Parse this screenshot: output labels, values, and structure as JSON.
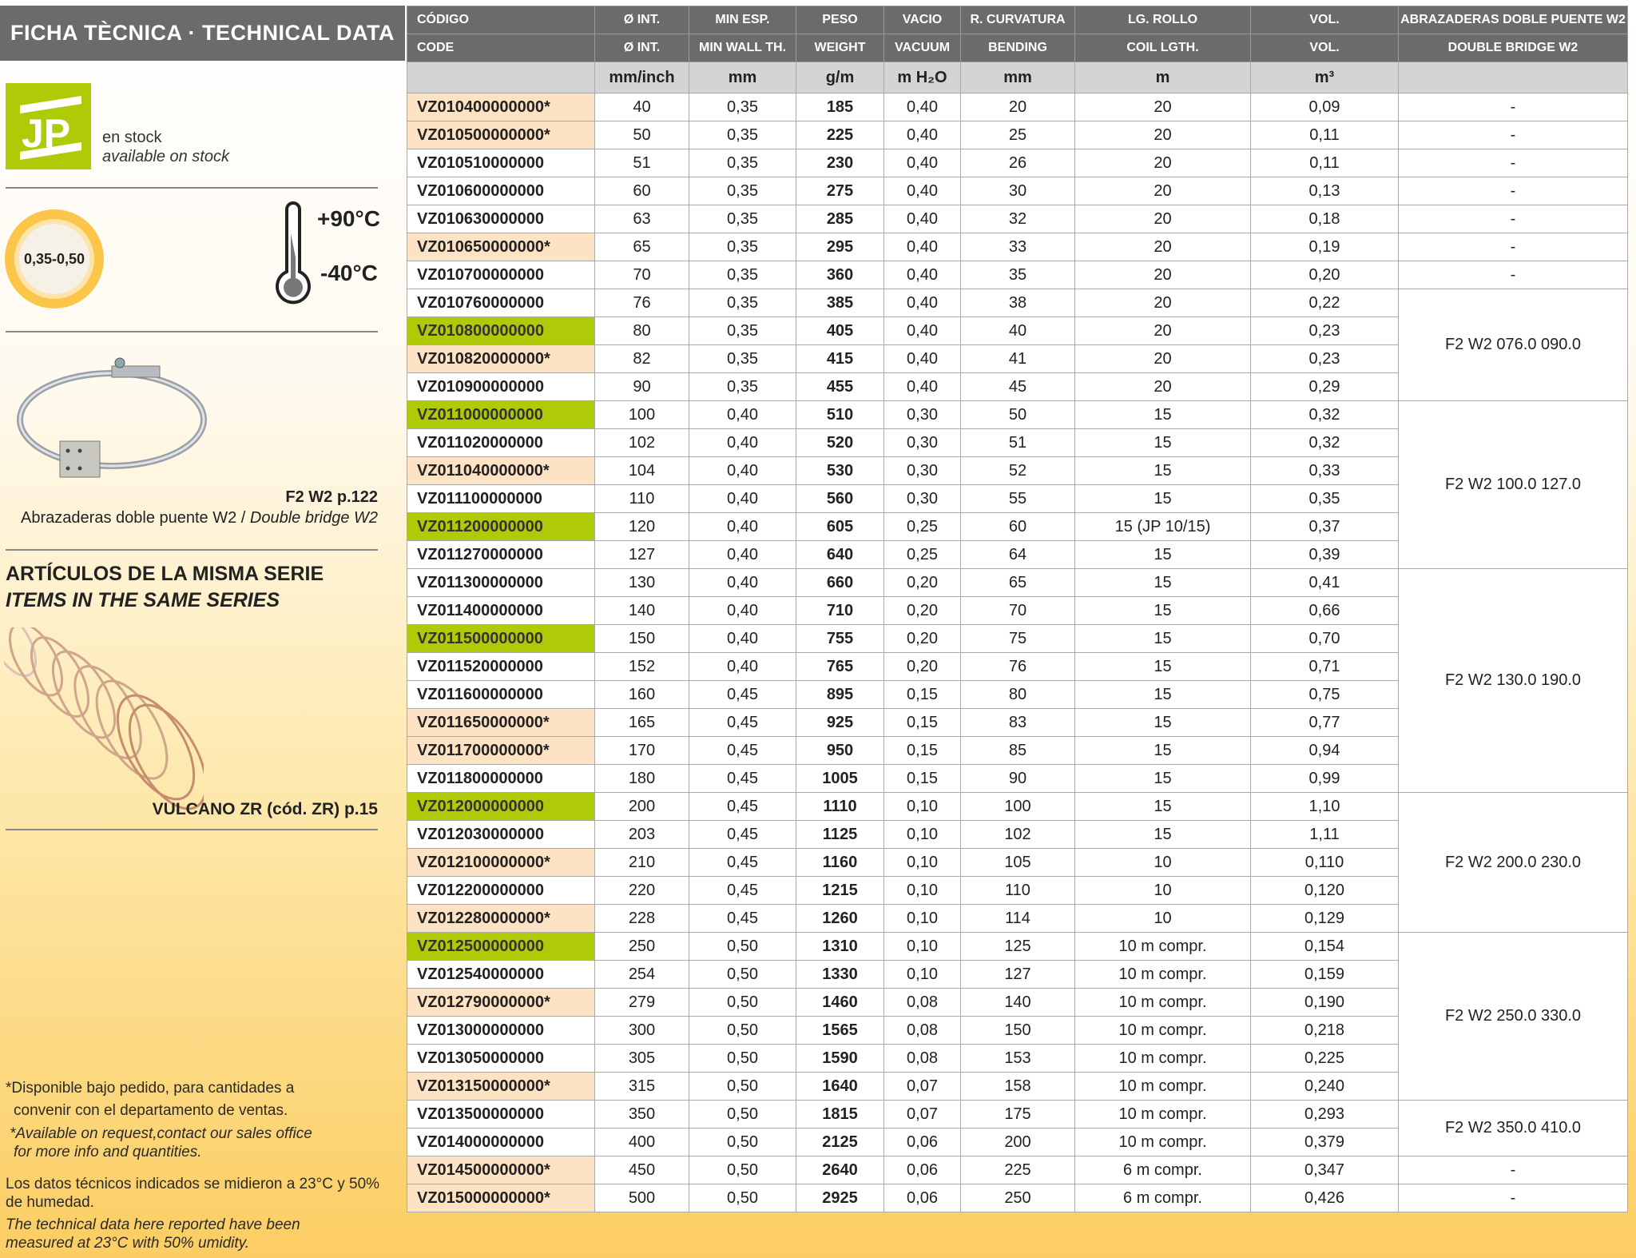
{
  "sidebar": {
    "title": "FICHA TÈCNICA · TECHNICAL DATA",
    "logo_text": "JP",
    "stock_es": "en stock",
    "stock_en": "available on stock",
    "thickness_badge": "0,35-0,50",
    "temp_max": "+90°C",
    "temp_min": "-40°C",
    "clamp_ref": "F2 W2 p.122",
    "clamp_caption_es": "Abrazaderas doble puente W2 / ",
    "clamp_caption_en": "Double bridge W2",
    "series_title": "ARTÍCULOS DE LA MISMA SERIE",
    "series_subtitle": "ITEMS IN THE SAME SERIES",
    "series_item": "VULCANO ZR (cód. ZR) p.15",
    "note_es_1": "*Disponible bajo pedido, para cantidades a",
    "note_es_2": "convenir con el departamento de ventas.",
    "note_en_1": "*Available on request,contact our sales office",
    "note_en_2": "for more info and quantities.",
    "conditions_es": "Los datos técnicos indicados se midieron a 23°C y 50% de humedad.",
    "conditions_en": "The technical data here reported have been measured at 23°C with 50% umidity."
  },
  "colors": {
    "header_bg": "#6b6b6b",
    "stock_green": "#afcb08",
    "on_request_peach": "#fde3c4",
    "units_bg": "#d4d4d4",
    "page_yellow": "#fccd62"
  },
  "table": {
    "headers_es": [
      "CÓDIGO",
      "Ø INT.",
      "MIN ESP.",
      "PESO",
      "VACIO",
      "R. CURVATURA",
      "LG. ROLLO",
      "VOL.",
      "ABRAZADERAS DOBLE PUENTE W2"
    ],
    "headers_en": [
      "CODE",
      "Ø INT.",
      "MIN WALL TH.",
      "WEIGHT",
      "VACUUM",
      "BENDING",
      "COIL LGTH.",
      "VOL.",
      "DOUBLE BRIDGE W2"
    ],
    "units": [
      "",
      "mm/inch",
      "mm",
      "g/m",
      "m H₂O",
      "mm",
      "m",
      "m³",
      ""
    ],
    "rows": [
      {
        "code": "VZ010400000000*",
        "status": "on-request",
        "d": "40",
        "wall": "0,35",
        "weight": "185",
        "vacuum": "0,40",
        "bend": "20",
        "coil": "20",
        "vol": "0,09"
      },
      {
        "code": "VZ010500000000*",
        "status": "on-request",
        "d": "50",
        "wall": "0,35",
        "weight": "225",
        "vacuum": "0,40",
        "bend": "25",
        "coil": "20",
        "vol": "0,11"
      },
      {
        "code": "VZ010510000000",
        "status": "",
        "d": "51",
        "wall": "0,35",
        "weight": "230",
        "vacuum": "0,40",
        "bend": "26",
        "coil": "20",
        "vol": "0,11"
      },
      {
        "code": "VZ010600000000",
        "status": "",
        "d": "60",
        "wall": "0,35",
        "weight": "275",
        "vacuum": "0,40",
        "bend": "30",
        "coil": "20",
        "vol": "0,13"
      },
      {
        "code": "VZ010630000000",
        "status": "",
        "d": "63",
        "wall": "0,35",
        "weight": "285",
        "vacuum": "0,40",
        "bend": "32",
        "coil": "20",
        "vol": "0,18"
      },
      {
        "code": "VZ010650000000*",
        "status": "on-request",
        "d": "65",
        "wall": "0,35",
        "weight": "295",
        "vacuum": "0,40",
        "bend": "33",
        "coil": "20",
        "vol": "0,19"
      },
      {
        "code": "VZ010700000000",
        "status": "",
        "d": "70",
        "wall": "0,35",
        "weight": "360",
        "vacuum": "0,40",
        "bend": "35",
        "coil": "20",
        "vol": "0,20"
      },
      {
        "code": "VZ010760000000",
        "status": "",
        "d": "76",
        "wall": "0,35",
        "weight": "385",
        "vacuum": "0,40",
        "bend": "38",
        "coil": "20",
        "vol": "0,22"
      },
      {
        "code": "VZ010800000000",
        "status": "in-stock",
        "d": "80",
        "wall": "0,35",
        "weight": "405",
        "vacuum": "0,40",
        "bend": "40",
        "coil": "20",
        "vol": "0,23"
      },
      {
        "code": "VZ010820000000*",
        "status": "on-request",
        "d": "82",
        "wall": "0,35",
        "weight": "415",
        "vacuum": "0,40",
        "bend": "41",
        "coil": "20",
        "vol": "0,23"
      },
      {
        "code": "VZ010900000000",
        "status": "",
        "d": "90",
        "wall": "0,35",
        "weight": "455",
        "vacuum": "0,40",
        "bend": "45",
        "coil": "20",
        "vol": "0,29"
      },
      {
        "code": "VZ011000000000",
        "status": "in-stock",
        "d": "100",
        "wall": "0,40",
        "weight": "510",
        "vacuum": "0,30",
        "bend": "50",
        "coil": "15",
        "vol": "0,32"
      },
      {
        "code": "VZ011020000000",
        "status": "",
        "d": "102",
        "wall": "0,40",
        "weight": "520",
        "vacuum": "0,30",
        "bend": "51",
        "coil": "15",
        "vol": "0,32"
      },
      {
        "code": "VZ011040000000*",
        "status": "on-request",
        "d": "104",
        "wall": "0,40",
        "weight": "530",
        "vacuum": "0,30",
        "bend": "52",
        "coil": "15",
        "vol": "0,33"
      },
      {
        "code": "VZ011100000000",
        "status": "",
        "d": "110",
        "wall": "0,40",
        "weight": "560",
        "vacuum": "0,30",
        "bend": "55",
        "coil": "15",
        "vol": "0,35"
      },
      {
        "code": "VZ011200000000",
        "status": "in-stock",
        "d": "120",
        "wall": "0,40",
        "weight": "605",
        "vacuum": "0,25",
        "bend": "60",
        "coil": "15 (JP 10/15)",
        "vol": "0,37"
      },
      {
        "code": "VZ011270000000",
        "status": "",
        "d": "127",
        "wall": "0,40",
        "weight": "640",
        "vacuum": "0,25",
        "bend": "64",
        "coil": "15",
        "vol": "0,39"
      },
      {
        "code": "VZ011300000000",
        "status": "",
        "d": "130",
        "wall": "0,40",
        "weight": "660",
        "vacuum": "0,20",
        "bend": "65",
        "coil": "15",
        "vol": "0,41"
      },
      {
        "code": "VZ011400000000",
        "status": "",
        "d": "140",
        "wall": "0,40",
        "weight": "710",
        "vacuum": "0,20",
        "bend": "70",
        "coil": "15",
        "vol": "0,66"
      },
      {
        "code": "VZ011500000000",
        "status": "in-stock",
        "d": "150",
        "wall": "0,40",
        "weight": "755",
        "vacuum": "0,20",
        "bend": "75",
        "coil": "15",
        "vol": "0,70"
      },
      {
        "code": "VZ011520000000",
        "status": "",
        "d": "152",
        "wall": "0,40",
        "weight": "765",
        "vacuum": "0,20",
        "bend": "76",
        "coil": "15",
        "vol": "0,71"
      },
      {
        "code": "VZ011600000000",
        "status": "",
        "d": "160",
        "wall": "0,45",
        "weight": "895",
        "vacuum": "0,15",
        "bend": "80",
        "coil": "15",
        "vol": "0,75"
      },
      {
        "code": "VZ011650000000*",
        "status": "on-request",
        "d": "165",
        "wall": "0,45",
        "weight": "925",
        "vacuum": "0,15",
        "bend": "83",
        "coil": "15",
        "vol": "0,77"
      },
      {
        "code": "VZ011700000000*",
        "status": "on-request",
        "d": "170",
        "wall": "0,45",
        "weight": "950",
        "vacuum": "0,15",
        "bend": "85",
        "coil": "15",
        "vol": "0,94"
      },
      {
        "code": "VZ011800000000",
        "status": "",
        "d": "180",
        "wall": "0,45",
        "weight": "1005",
        "vacuum": "0,15",
        "bend": "90",
        "coil": "15",
        "vol": "0,99"
      },
      {
        "code": "VZ012000000000",
        "status": "in-stock",
        "d": "200",
        "wall": "0,45",
        "weight": "1110",
        "vacuum": "0,10",
        "bend": "100",
        "coil": "15",
        "vol": "1,10"
      },
      {
        "code": "VZ012030000000",
        "status": "",
        "d": "203",
        "wall": "0,45",
        "weight": "1125",
        "vacuum": "0,10",
        "bend": "102",
        "coil": "15",
        "vol": "1,11"
      },
      {
        "code": "VZ012100000000*",
        "status": "on-request",
        "d": "210",
        "wall": "0,45",
        "weight": "1160",
        "vacuum": "0,10",
        "bend": "105",
        "coil": "10",
        "vol": "0,110"
      },
      {
        "code": "VZ012200000000",
        "status": "",
        "d": "220",
        "wall": "0,45",
        "weight": "1215",
        "vacuum": "0,10",
        "bend": "110",
        "coil": "10",
        "vol": "0,120"
      },
      {
        "code": "VZ012280000000*",
        "status": "on-request",
        "d": "228",
        "wall": "0,45",
        "weight": "1260",
        "vacuum": "0,10",
        "bend": "114",
        "coil": "10",
        "vol": "0,129"
      },
      {
        "code": "VZ012500000000",
        "status": "in-stock",
        "d": "250",
        "wall": "0,50",
        "weight": "1310",
        "vacuum": "0,10",
        "bend": "125",
        "coil": "10 m compr.",
        "vol": "0,154"
      },
      {
        "code": "VZ012540000000",
        "status": "",
        "d": "254",
        "wall": "0,50",
        "weight": "1330",
        "vacuum": "0,10",
        "bend": "127",
        "coil": "10 m compr.",
        "vol": "0,159"
      },
      {
        "code": "VZ012790000000*",
        "status": "on-request",
        "d": "279",
        "wall": "0,50",
        "weight": "1460",
        "vacuum": "0,08",
        "bend": "140",
        "coil": "10 m compr.",
        "vol": "0,190"
      },
      {
        "code": "VZ013000000000",
        "status": "",
        "d": "300",
        "wall": "0,50",
        "weight": "1565",
        "vacuum": "0,08",
        "bend": "150",
        "coil": "10 m compr.",
        "vol": "0,218"
      },
      {
        "code": "VZ013050000000",
        "status": "",
        "d": "305",
        "wall": "0,50",
        "weight": "1590",
        "vacuum": "0,08",
        "bend": "153",
        "coil": "10 m compr.",
        "vol": "0,225"
      },
      {
        "code": "VZ013150000000*",
        "status": "on-request",
        "d": "315",
        "wall": "0,50",
        "weight": "1640",
        "vacuum": "0,07",
        "bend": "158",
        "coil": "10 m compr.",
        "vol": "0,240"
      },
      {
        "code": "VZ013500000000",
        "status": "",
        "d": "350",
        "wall": "0,50",
        "weight": "1815",
        "vacuum": "0,07",
        "bend": "175",
        "coil": "10 m compr.",
        "vol": "0,293"
      },
      {
        "code": "VZ014000000000",
        "status": "",
        "d": "400",
        "wall": "0,50",
        "weight": "2125",
        "vacuum": "0,06",
        "bend": "200",
        "coil": "10 m compr.",
        "vol": "0,379"
      },
      {
        "code": "VZ014500000000*",
        "status": "on-request",
        "d": "450",
        "wall": "0,50",
        "weight": "2640",
        "vacuum": "0,06",
        "bend": "225",
        "coil": "6 m compr.",
        "vol": "0,347"
      },
      {
        "code": "VZ015000000000*",
        "status": "on-request",
        "d": "500",
        "wall": "0,50",
        "weight": "2925",
        "vacuum": "0,06",
        "bend": "250",
        "coil": "6 m compr.",
        "vol": "0,426"
      }
    ],
    "clamp_groups": [
      {
        "label": "-",
        "rows": 1
      },
      {
        "label": "-",
        "rows": 1
      },
      {
        "label": "-",
        "rows": 1
      },
      {
        "label": "-",
        "rows": 1
      },
      {
        "label": "-",
        "rows": 1
      },
      {
        "label": "-",
        "rows": 1
      },
      {
        "label": "-",
        "rows": 1
      },
      {
        "label": "F2 W2 076.0 090.0",
        "rows": 4
      },
      {
        "label": "F2 W2 100.0 127.0",
        "rows": 6
      },
      {
        "label": "F2 W2 130.0 190.0",
        "rows": 8
      },
      {
        "label": "F2 W2 200.0 230.0",
        "rows": 5
      },
      {
        "label": "F2 W2 250.0 330.0",
        "rows": 6
      },
      {
        "label": "F2 W2 350.0 410.0",
        "rows": 2
      },
      {
        "label": "-",
        "rows": 1
      },
      {
        "label": "-",
        "rows": 1
      }
    ]
  }
}
